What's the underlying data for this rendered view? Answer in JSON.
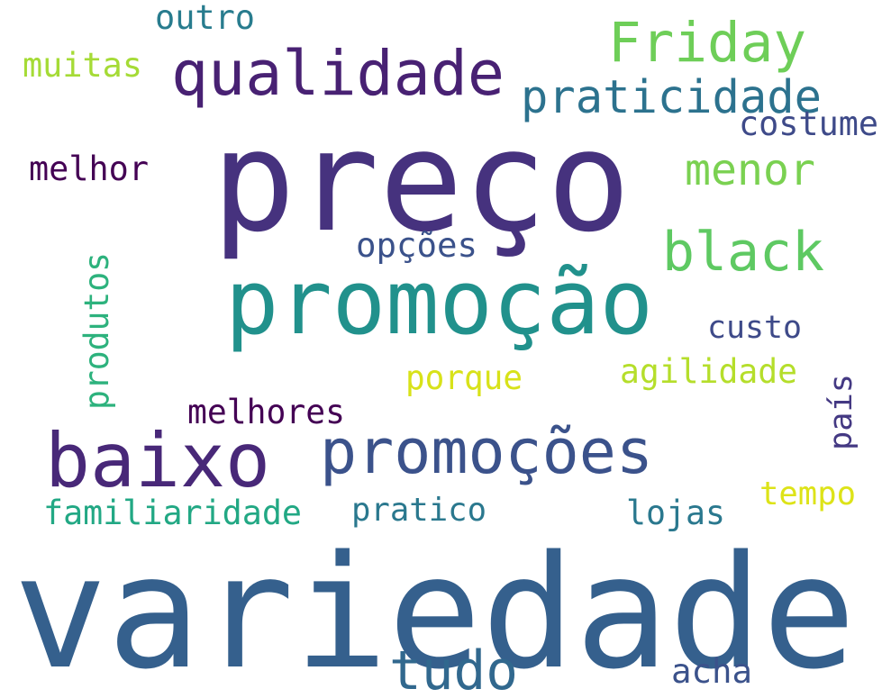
{
  "words": [
    {
      "text": "preço",
      "color": "#46327e"
    },
    {
      "text": "variedade",
      "color": "#35608d"
    },
    {
      "text": "promoção",
      "color": "#21918c"
    },
    {
      "text": "baixo",
      "color": "#482878"
    },
    {
      "text": "promoções",
      "color": "#3b528b"
    },
    {
      "text": "qualidade",
      "color": "#482173"
    },
    {
      "text": "Friday",
      "color": "#6ece58"
    },
    {
      "text": "praticidade",
      "color": "#2c728e"
    },
    {
      "text": "costume",
      "color": "#3e4a89"
    },
    {
      "text": "melhor",
      "color": "#440154"
    },
    {
      "text": "menor",
      "color": "#7ad151"
    },
    {
      "text": "black",
      "color": "#5ec962"
    },
    {
      "text": "opções",
      "color": "#3b528b"
    },
    {
      "text": "muitas",
      "color": "#a5db36"
    },
    {
      "text": "outro",
      "color": "#287c8e"
    },
    {
      "text": "produtos",
      "color": "#2db27d"
    },
    {
      "text": "custo",
      "color": "#3e4a89"
    },
    {
      "text": "agilidade",
      "color": "#b5de2b"
    },
    {
      "text": "porque",
      "color": "#d8e219"
    },
    {
      "text": "país",
      "color": "#443983"
    },
    {
      "text": "melhores",
      "color": "#440154"
    },
    {
      "text": "tempo",
      "color": "#dde318"
    },
    {
      "text": "familiaridade",
      "color": "#22a884"
    },
    {
      "text": "pratico",
      "color": "#2a788e"
    },
    {
      "text": "lojas",
      "color": "#2a788e"
    },
    {
      "text": "tudo",
      "color": "#31688e"
    },
    {
      "text": "acha",
      "color": "#3b528b"
    }
  ]
}
